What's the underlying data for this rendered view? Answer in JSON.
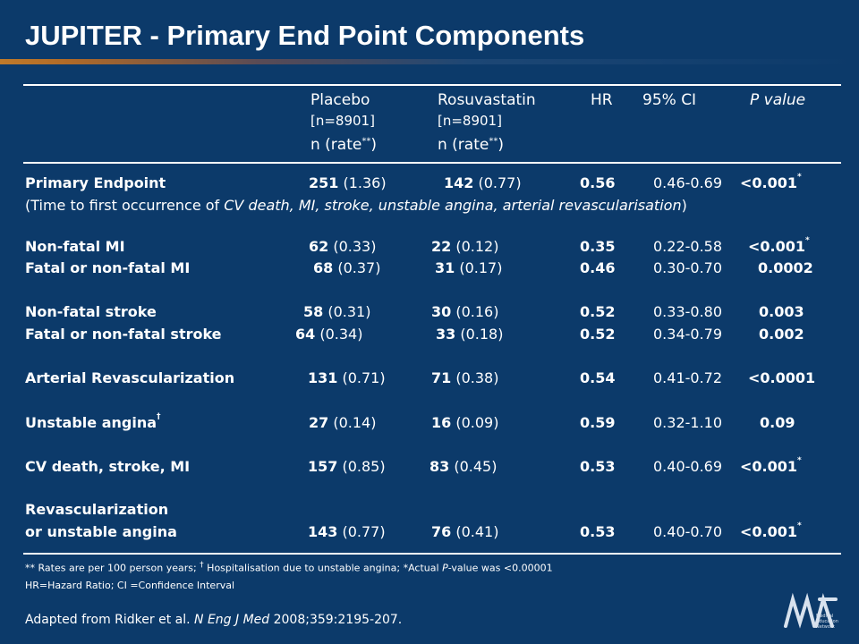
{
  "title": "JUPITER - Primary End Point Components",
  "header": {
    "placebo": "Placebo",
    "placebo_n": "[n=8901]",
    "placebo_rate": "n (rate",
    "rosu": "Rosuvastatin",
    "rosu_n": "[n=8901]",
    "rosu_rate": "n (rate",
    "rate_mark": "**",
    "rate_close": ")",
    "hr": "HR",
    "ci": "95% CI",
    "p": "P value"
  },
  "primary": {
    "label": "Primary Endpoint",
    "pl_n": "251",
    "pl_rate": " (1.36)",
    "ro_n": "142",
    "ro_rate": " (0.77)",
    "hr": "0.56",
    "ci": "0.46-0.69",
    "p": "<0.001",
    "mark": "*"
  },
  "primary_note": {
    "a": "(Time to first occurrence of ",
    "b": "CV death, MI, stroke, unstable angina, arterial revascularisation",
    "c": ")"
  },
  "rows": {
    "nfmi": {
      "label": "Non-fatal MI",
      "pl_n": "62",
      "pl_rate": " (0.33)",
      "ro_n": "22",
      "ro_rate": " (0.12)",
      "hr": "0.35",
      "ci": "0.22-0.58",
      "p": "<0.001",
      "mark": "*"
    },
    "fmi": {
      "label": "Fatal or non-fatal MI",
      "pl_n": "68",
      "pl_rate": " (0.37)",
      "ro_n": "31",
      "ro_rate": " (0.17)",
      "hr": "0.46",
      "ci": "0.30-0.70",
      "p": "0.0002"
    },
    "nfs": {
      "label": "Non-fatal stroke",
      "pl_n": "58",
      "pl_rate": " (0.31)",
      "ro_n": "30",
      "ro_rate": " (0.16)",
      "hr": "0.52",
      "ci": "0.33-0.80",
      "p": "0.003"
    },
    "fs": {
      "label": "Fatal or non-fatal stroke",
      "pl_n": "64",
      "pl_rate": " (0.34)",
      "ro_n": "33",
      "ro_rate": " (0.18)",
      "hr": "0.52",
      "ci": "0.34-0.79",
      "p": "0.002"
    },
    "ar": {
      "label": "Arterial Revascularization",
      "pl_n": "131",
      "pl_rate": " (0.71)",
      "ro_n": "71",
      "ro_rate": " (0.38)",
      "hr": "0.54",
      "ci": "0.41-0.72",
      "p": "<0.0001"
    },
    "ua": {
      "label": "Unstable angina",
      "mark": "†",
      "pl_n": "27",
      "pl_rate": " (0.14)",
      "ro_n": "16",
      "ro_rate": " (0.09)",
      "hr": "0.59",
      "ci": "0.32-1.10",
      "p": "0.09"
    },
    "cv": {
      "label": "CV death, stroke, MI",
      "pl_n": "157",
      "pl_rate": " (0.85)",
      "ro_n": "83",
      "ro_rate": " (0.45)",
      "hr": "0.53",
      "ci": "0.40-0.69",
      "p": "<0.001",
      "pmark": "*"
    },
    "rev": {
      "label1": "Revascularization",
      "label2": "or unstable angina",
      "pl_n": "143",
      "pl_rate": " (0.77)",
      "ro_n": "76",
      "ro_rate": " (0.41)",
      "hr": "0.53",
      "ci": "0.40-0.70",
      "p": "<0.001",
      "pmark": "*"
    }
  },
  "footnote1": {
    "a": "** Rates are per 100 person years; ",
    "dagger": "†",
    "b": " Hospitalisation  due to unstable angina; *Actual ",
    "pi": "P",
    "c": "-value was <0.00001"
  },
  "footnote2": "HR=Hazard Ratio; CI =Confidence Interval",
  "source": {
    "a": "Adapted from Ridker et al. ",
    "journal": "N Eng J Med",
    "b": " 2008;359:2195-207."
  },
  "logo": {
    "text": "Medical Education Network",
    "icon": "men-logo-icon"
  }
}
